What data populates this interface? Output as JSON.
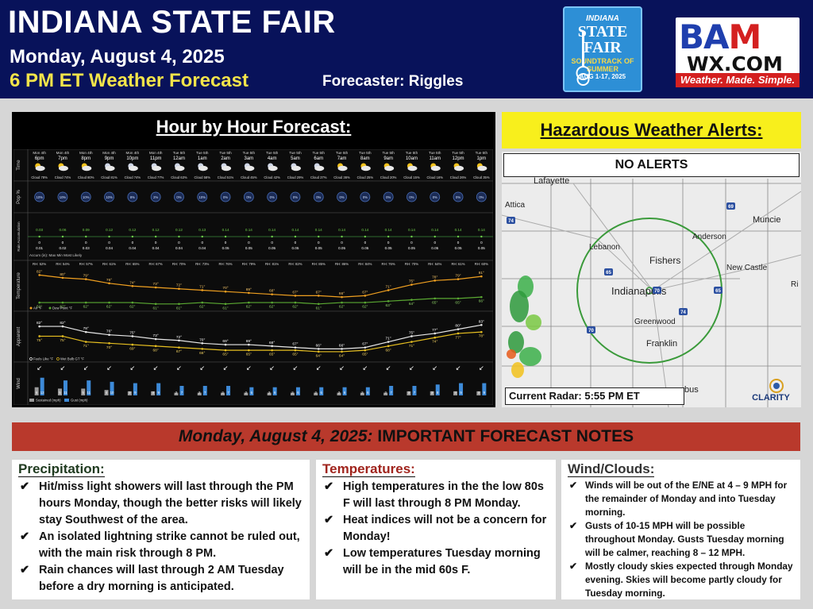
{
  "header": {
    "title": "INDIANA STATE FAIR",
    "date": "Monday, August 4, 2025",
    "forecast_label": "6 PM ET Weather Forecast",
    "forecaster": "Forecaster: Riggles",
    "fair_logo": {
      "line1": "INDIANA",
      "line2": "STATE",
      "line3": "FAIR",
      "line4": "SOUNDTRACK OF SUMMER",
      "line5": "AUG 1-17, 2025"
    },
    "bam_logo": {
      "name_prefix": "BA",
      "name_suffix": "M",
      "wx": "WX.COM",
      "tagline": "Weather. Made. Simple."
    }
  },
  "hour_by_hour": {
    "title": "Hour by Hour Forecast:",
    "row_labels": [
      "Time",
      "Pop %",
      "Rain Accumulation",
      "Temperature",
      "Apparent",
      "Wind"
    ],
    "days": [
      "Mon 4th",
      "Mon 4th",
      "Mon 4th",
      "Mon 4th",
      "Mon 4th",
      "Mon 4th",
      "Tue 5th",
      "Tue 5th",
      "Tue 5th",
      "Tue 5th",
      "Tue 5th",
      "Tue 5th",
      "Tue 5th",
      "Tue 5th",
      "Tue 5th",
      "Tue 5th",
      "Tue 5th",
      "Tue 5th",
      "Tue 5th",
      "Tue 5th"
    ],
    "hours": [
      "6pm",
      "7pm",
      "8pm",
      "9pm",
      "10pm",
      "11pm",
      "12am",
      "1am",
      "2am",
      "3am",
      "4am",
      "5am",
      "6am",
      "7am",
      "8am",
      "9am",
      "10am",
      "11am",
      "12pm",
      "1pm"
    ],
    "cloud": [
      "Cloud 78%",
      "Cloud 74%",
      "Cloud 80%",
      "Cloud 81%",
      "Cloud 74%",
      "Cloud 77%",
      "Cloud 63%",
      "Cloud 58%",
      "Cloud 51%",
      "Cloud 45%",
      "Cloud 42%",
      "Cloud 29%",
      "Cloud 37%",
      "Cloud 36%",
      "Cloud 25%",
      "Cloud 20%",
      "Cloud 15%",
      "Cloud 16%",
      "Cloud 26%",
      "Cloud 35%"
    ],
    "pop": [
      "10%",
      "10%",
      "10%",
      "10%",
      "8%",
      "2%",
      "0%",
      "10%",
      "0%",
      "0%",
      "0%",
      "0%",
      "0%",
      "0%",
      "0%",
      "0%",
      "0%",
      "0%",
      "0%",
      "0%"
    ],
    "rain_max": [
      "0.03",
      "0.06",
      "0.09",
      "0.12",
      "0.12",
      "0.12",
      "0.12",
      "0.13",
      "0.14",
      "0.14",
      "0.14",
      "0.14",
      "0.14",
      "0.14",
      "0.14",
      "0.14",
      "0.14",
      "0.14",
      "0.14",
      "0.14"
    ],
    "rain_min": [
      "0",
      "0",
      "0",
      "0",
      "0",
      "0",
      "0",
      "0",
      "0",
      "0",
      "0",
      "0",
      "0",
      "0",
      "0",
      "0",
      "0",
      "0",
      "0",
      "0"
    ],
    "rain_likely": [
      "0.01",
      "0.02",
      "0.03",
      "0.04",
      "0.04",
      "0.04",
      "0.04",
      "0.04",
      "0.05",
      "0.05",
      "0.05",
      "0.05",
      "0.05",
      "0.05",
      "0.05",
      "0.05",
      "0.05",
      "0.05",
      "0.05",
      "0.05"
    ],
    "rain_legend": "Accum (in): Max Min Most Likely",
    "rh": [
      "RH: 52%",
      "RH: 54%",
      "RH: 57%",
      "RH: 61%",
      "RH: 65%",
      "RH: 67%",
      "RH: 70%",
      "RH: 73%",
      "RH: 76%",
      "RH: 79%",
      "RH: 81%",
      "RH: 82%",
      "RH: 85%",
      "RH: 86%",
      "RH: 84%",
      "RH: 76%",
      "RH: 70%",
      "RH: 64%",
      "RH: 61%",
      "RH: 60%"
    ],
    "temp": [
      82,
      80,
      79,
      76,
      74,
      73,
      72,
      71,
      70,
      69,
      68,
      67,
      67,
      66,
      67,
      71,
      75,
      78,
      79,
      81
    ],
    "temp_labels": [
      "82°",
      "80°",
      "79°",
      "76°",
      "74°",
      "73°",
      "72°",
      "71°",
      "70°",
      "69°",
      "68°",
      "67°",
      "67°",
      "66°",
      "67°",
      "71°",
      "75°",
      "78°",
      "79°",
      "81°"
    ],
    "dew": [
      62,
      62,
      62,
      62,
      62,
      61,
      61,
      62,
      61,
      62,
      62,
      62,
      61,
      62,
      62,
      63,
      64,
      65,
      65,
      66
    ],
    "dew_labels": [
      "62°",
      "62°",
      "62°",
      "62°",
      "62°",
      "61°",
      "61°",
      "62°",
      "61°",
      "62°",
      "62°",
      "62°",
      "61°",
      "62°",
      "62°",
      "63°",
      "64°",
      "65°",
      "65°",
      "66°"
    ],
    "temp_legend_air": "Air °F",
    "temp_legend_dew": "Dew Point °F",
    "feels": [
      82,
      82,
      78,
      76,
      75,
      73,
      72,
      70,
      69,
      69,
      68,
      67,
      66,
      66,
      67,
      71,
      75,
      77,
      80,
      83
    ],
    "feels_labels": [
      "82°",
      "82°",
      "78°",
      "76°",
      "75°",
      "73°",
      "72°",
      "70°",
      "69°",
      "69°",
      "68°",
      "67°",
      "66°",
      "66°",
      "67°",
      "71°",
      "75°",
      "77°",
      "80°",
      "83°"
    ],
    "wbgt": [
      75,
      75,
      71,
      70,
      69,
      68,
      67,
      66,
      65,
      65,
      65,
      65,
      64,
      64,
      65,
      68,
      71,
      74,
      77,
      78
    ],
    "wbgt_labels": [
      "75°",
      "75°",
      "71°",
      "70°",
      "69°",
      "68°",
      "67°",
      "66°",
      "65°",
      "65°",
      "65°",
      "65°",
      "64°",
      "64°",
      "65°",
      "68°",
      "71°",
      "74°",
      "77°",
      "78°"
    ],
    "apparent_legend_feels": "Feels Like °F",
    "apparent_legend_wbgt": "Wet Bulb GT °F",
    "wind_sustained": [
      6,
      5,
      5,
      4,
      3,
      3,
      2,
      2,
      2,
      2,
      2,
      2,
      2,
      2,
      2,
      2,
      3,
      3,
      3,
      3
    ],
    "wind_gust": [
      13,
      11,
      11,
      10,
      9,
      9,
      7,
      7,
      7,
      6,
      6,
      6,
      6,
      6,
      6,
      7,
      7,
      8,
      9,
      9
    ],
    "wind_arrow": "↙",
    "wind_legend_sustained": "Sustained (mph)",
    "wind_legend_gust": "Gust (mph)"
  },
  "hazard": {
    "title": "Hazardous Weather Alerts:",
    "status": "NO ALERTS",
    "radar_label": "Current Radar: 5:55 PM ET",
    "cities": [
      "Lafayette",
      "Attica",
      "Muncie",
      "Anderson",
      "Lebanon",
      "Fishers",
      "New Castle",
      "Indianapolis",
      "Greenwood",
      "Franklin",
      "Ri",
      "bus"
    ],
    "highways": [
      "69",
      "74",
      "65",
      "70",
      "65",
      "70",
      "74"
    ],
    "clarity_text": "CLARITY"
  },
  "notes": {
    "title_date": "Monday, August 4, 2025:",
    "title_rest": " IMPORTANT FORECAST NOTES",
    "precip": {
      "heading": "Precipitation:",
      "items": [
        "Hit/miss light showers will last through the PM hours Monday, though the better risks will likely stay Southwest of the area.",
        "An isolated lightning strike cannot be ruled out, with the main risk through 8 PM.",
        "Rain chances will last through 2 AM Tuesday before a dry morning is anticipated."
      ]
    },
    "temps": {
      "heading": "Temperatures:",
      "items": [
        "High temperatures in the the low 80s F will last through 8 PM Monday.",
        "Heat indices will not be a concern for Monday!",
        "Low temperatures Tuesday morning will be in the mid 60s F."
      ]
    },
    "wind": {
      "heading": "Wind/Clouds:",
      "items": [
        "Winds will be out of the E/NE at 4 – 9 MPH for the remainder of Monday and into Tuesday morning.",
        "Gusts of 10-15 MPH will be possible throughout Monday. Gusts Tuesday morning will be calmer, reaching 8 – 12 MPH.",
        "Mostly cloudy skies expected through Monday evening. Skies will become partly cloudy for Tuesday morning."
      ]
    },
    "check_mark": "✔"
  },
  "colors": {
    "header_bg": "#08125a",
    "accent_yellow": "#f3e44a",
    "notes_band": "#b9392c",
    "temp_line": "#f0a020",
    "dew_line": "#5aa832",
    "feels_line": "#e8e8e8",
    "wbgt_line": "#e8c020",
    "gust_bar": "#3d8ad8",
    "sustained_bar": "#9a9a9a"
  }
}
